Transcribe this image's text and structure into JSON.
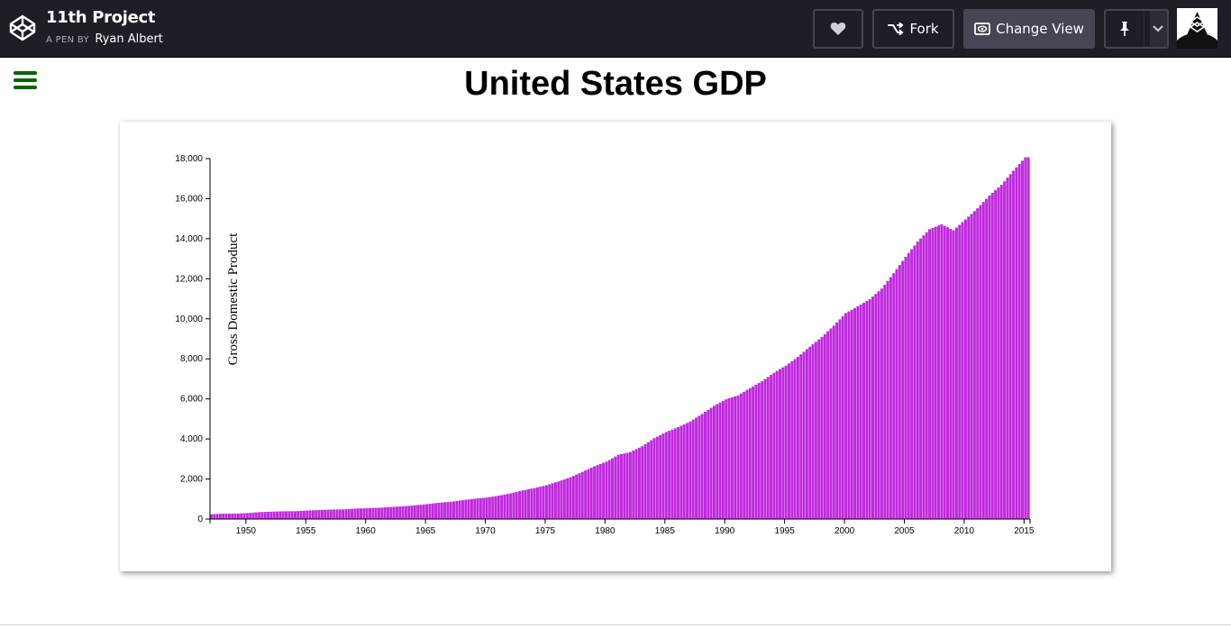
{
  "header": {
    "project_title": "11th Project",
    "byline_prefix": "A PEN BY",
    "author": "Ryan Albert",
    "buttons": {
      "heart_icon": "heart-icon",
      "fork_label": "Fork",
      "change_view_label": "Change View",
      "pin_icon": "pin-icon"
    }
  },
  "page": {
    "title": "United States GDP"
  },
  "chart_data": {
    "type": "bar",
    "title": "United States GDP",
    "xlabel": "",
    "ylabel": "Gross Domestic Product",
    "ylim": [
      0,
      18000
    ],
    "xlim": [
      1947,
      2015.5
    ],
    "y_ticks": [
      0,
      2000,
      4000,
      6000,
      8000,
      10000,
      12000,
      14000,
      16000,
      18000
    ],
    "y_tick_labels": [
      "0",
      "2,000",
      "4,000",
      "6,000",
      "8,000",
      "10,000",
      "12,000",
      "14,000",
      "16,000",
      "18,000"
    ],
    "x_ticks": [
      1950,
      1955,
      1960,
      1965,
      1970,
      1975,
      1980,
      1985,
      1990,
      1995,
      2000,
      2005,
      2010,
      2015
    ],
    "x_tick_labels": [
      "1950",
      "1955",
      "1960",
      "1965",
      "1970",
      "1975",
      "1980",
      "1985",
      "1990",
      "1995",
      "2000",
      "2005",
      "2010",
      "2015"
    ],
    "bar_color": "#c029de",
    "frequency": "quarterly",
    "annual_points": {
      "year": [
        1947,
        1948,
        1949,
        1950,
        1951,
        1952,
        1953,
        1954,
        1955,
        1956,
        1957,
        1958,
        1959,
        1960,
        1961,
        1962,
        1963,
        1964,
        1965,
        1966,
        1967,
        1968,
        1969,
        1970,
        1971,
        1972,
        1973,
        1974,
        1975,
        1976,
        1977,
        1978,
        1979,
        1980,
        1981,
        1982,
        1983,
        1984,
        1985,
        1986,
        1987,
        1988,
        1989,
        1990,
        1991,
        1992,
        1993,
        1994,
        1995,
        1996,
        1997,
        1998,
        1999,
        2000,
        2001,
        2002,
        2003,
        2004,
        2005,
        2006,
        2007,
        2008,
        2009,
        2010,
        2011,
        2012,
        2013,
        2014,
        2015
      ],
      "gdp": [
        243,
        270,
        271,
        300,
        345,
        368,
        389,
        391,
        425,
        449,
        475,
        482,
        522,
        543,
        563,
        605,
        638,
        686,
        743,
        815,
        861,
        943,
        1019,
        1075,
        1168,
        1283,
        1429,
        1549,
        1689,
        1878,
        2086,
        2357,
        2632,
        2862,
        3211,
        3345,
        3638,
        4041,
        4347,
        4590,
        4870,
        5253,
        5658,
        5980,
        6174,
        6539,
        6879,
        7309,
        7664,
        8100,
        8609,
        9089,
        9661,
        10285,
        10622,
        10978,
        11511,
        12275,
        13094,
        13856,
        14478,
        14719,
        14419,
        14964,
        15518,
        16155,
        16692,
        17393,
        18064
      ]
    }
  }
}
